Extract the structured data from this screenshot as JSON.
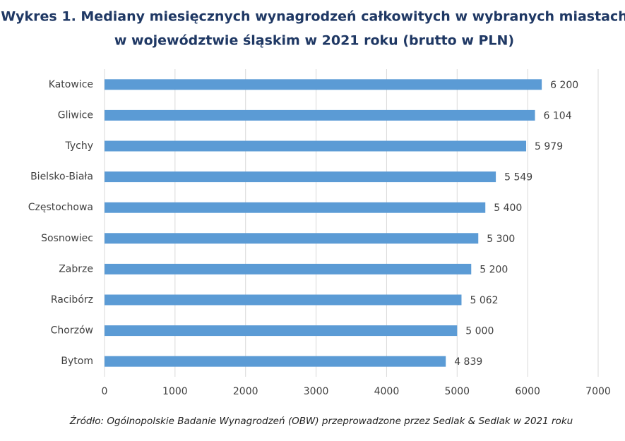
{
  "chart_data": {
    "type": "bar",
    "orientation": "horizontal",
    "title": [
      "Wykres 1. Mediany miesięcznych wynagrodzeń całkowitych w wybranych miastach",
      "w województwie śląskim w 2021 roku (brutto w PLN)"
    ],
    "categories": [
      "Katowice",
      "Gliwice",
      "Tychy",
      "Bielsko-Biała",
      "Częstochowa",
      "Sosnowiec",
      "Zabrze",
      "Racibórz",
      "Chorzów",
      "Bytom"
    ],
    "values": [
      6200,
      6104,
      5979,
      5549,
      5400,
      5300,
      5200,
      5062,
      5000,
      4839
    ],
    "value_labels": [
      "6 200",
      "6 104",
      "5 979",
      "5 549",
      "5 400",
      "5 300",
      "5 200",
      "5 062",
      "5 000",
      "4 839"
    ],
    "color": "#5b9bd5",
    "xlim": [
      0,
      7000
    ],
    "xticks": [
      0,
      1000,
      2000,
      3000,
      4000,
      5000,
      6000,
      7000
    ],
    "grid": true,
    "source": "Źródło: Ogólnopolskie Badanie Wynagrodzeń (OBW) przeprowadzone przez Sedlak & Sedlak w 2021 roku"
  }
}
